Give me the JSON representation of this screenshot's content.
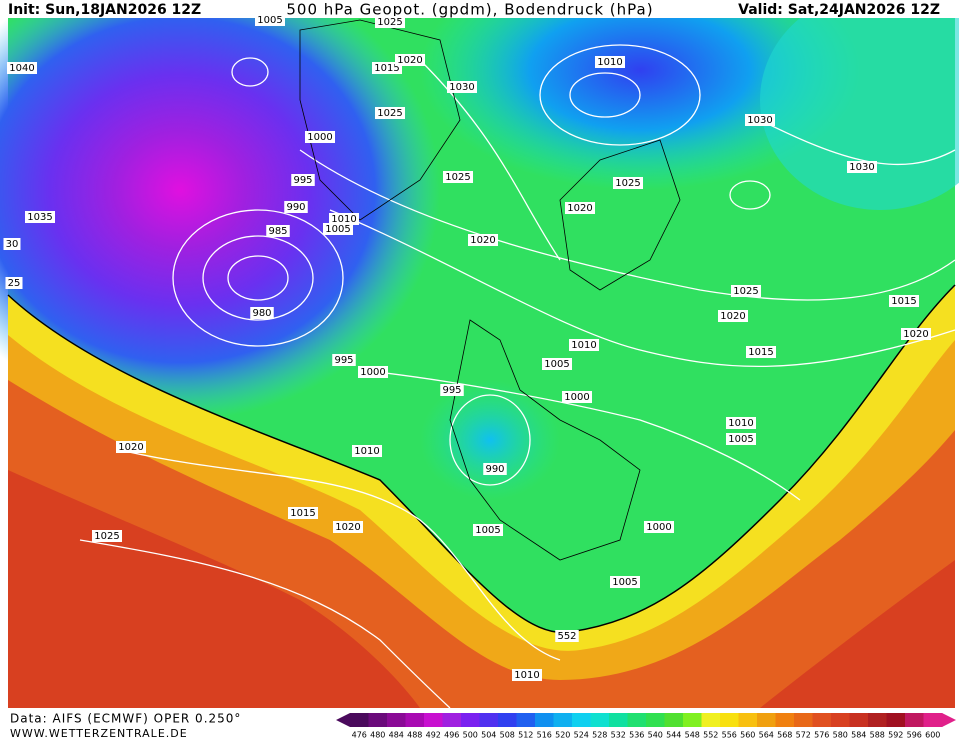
{
  "header": {
    "init": "Init: Sun,18JAN2026 12Z",
    "title": "500 hPa Geopot. (gpdm), Bodendruck (hPa)",
    "valid": "Valid: Sat,24JAN2026 12Z"
  },
  "footer": {
    "source": "Data: AIFS (ECMWF) OPER 0.250°",
    "website": "WWW.WETTERZENTRALE.DE"
  },
  "isobar_labels": [
    1005,
    1025,
    1040,
    1015,
    1020,
    1030,
    1010,
    1025,
    1030,
    1000,
    1030,
    1025,
    1025,
    995,
    990,
    1020,
    1035,
    1010,
    1005,
    985,
    1020,
    30,
    25,
    1025,
    1015,
    980,
    1020,
    1020,
    1010,
    1015,
    995,
    1005,
    1000,
    995,
    1000,
    1010,
    1005,
    1020,
    1010,
    990,
    1015,
    1020,
    1000,
    1005,
    1025,
    1005,
    552,
    1010
  ],
  "colorbar": {
    "values": [
      476,
      480,
      484,
      488,
      492,
      496,
      500,
      504,
      508,
      512,
      516,
      520,
      524,
      528,
      532,
      536,
      540,
      544,
      548,
      552,
      556,
      560,
      564,
      568,
      572,
      576,
      580,
      584,
      588,
      592,
      596,
      600
    ],
    "colors": [
      "#4a0a5c",
      "#6a0a7a",
      "#8a0a96",
      "#a80ab2",
      "#c810d0",
      "#a020e0",
      "#7a20f0",
      "#5030f0",
      "#3040f0",
      "#2060f0",
      "#1090f0",
      "#10b0f0",
      "#10d0f0",
      "#10e0d0",
      "#10e0a0",
      "#20e070",
      "#30e050",
      "#50e030",
      "#80f020",
      "#f0f020",
      "#f8e010",
      "#f8c010",
      "#f0a010",
      "#f08010",
      "#e86818",
      "#e05020",
      "#d84020",
      "#c83020",
      "#b02020",
      "#a01020",
      "#c01860",
      "#e0208a"
    ]
  }
}
